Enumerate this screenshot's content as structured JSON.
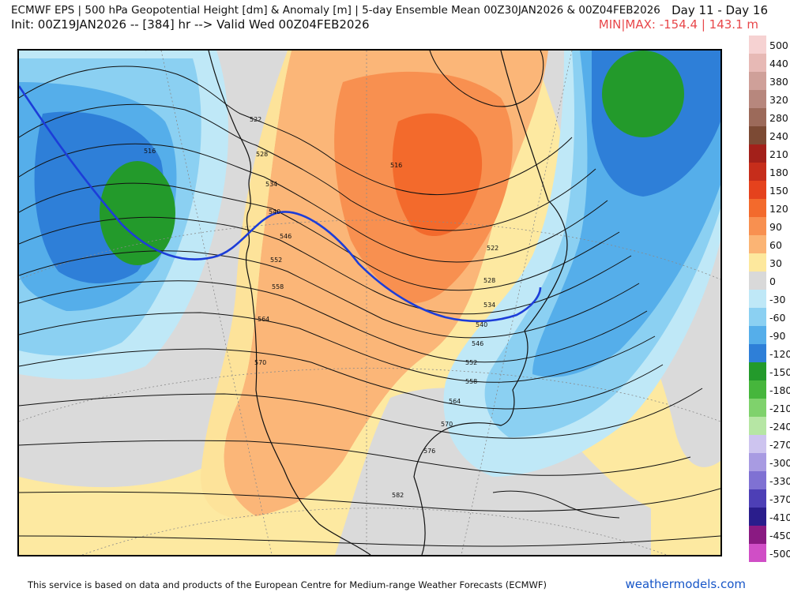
{
  "header": {
    "title": "ECMWF EPS | 500 hPa Geopotential Height [dm] & Anomaly [m] | 5-day Ensemble Mean 00Z30JAN2026 & 00Z04FEB2026",
    "init": "Init: 00Z19JAN2026 -- [384] hr --> Valid Wed 00Z04FEB2026",
    "day_range": "Day 11 - Day 16",
    "minmax": "MIN|MAX: -154.4 | 143.1 m"
  },
  "colorbar": {
    "labels": [
      "500",
      "440",
      "380",
      "320",
      "280",
      "240",
      "210",
      "180",
      "150",
      "120",
      "90",
      "60",
      "30",
      "0",
      "-30",
      "-60",
      "-90",
      "-120",
      "-150",
      "-180",
      "-210",
      "-240",
      "-270",
      "-300",
      "-330",
      "-370",
      "-410",
      "-450",
      "-500"
    ],
    "colors": [
      "#f6d2d2",
      "#e7b9b5",
      "#cfa099",
      "#b7877d",
      "#9c6a5a",
      "#7c4a34",
      "#a3201a",
      "#c62d1b",
      "#e5421d",
      "#f36a2c",
      "#f89050",
      "#fbb474",
      "#fde89d",
      "#d9d9d9",
      "#bfe8f7",
      "#8bd0f2",
      "#55aeea",
      "#2e7fd8",
      "#239a2b",
      "#46b63c",
      "#7fd26c",
      "#b6e6a4",
      "#cdc4ef",
      "#a89be2",
      "#7f71d3",
      "#4d3fb6",
      "#2a1d8c",
      "#8a1a82",
      "#d04ec6",
      "#ee82e6"
    ]
  },
  "map": {
    "contour_labels": [
      "516",
      "522",
      "528",
      "534",
      "540",
      "546",
      "552",
      "558",
      "564",
      "570",
      "516",
      "522",
      "528",
      "534",
      "540",
      "546",
      "552",
      "558",
      "564",
      "570",
      "576",
      "582"
    ]
  },
  "footer": {
    "disclaimer": "This service is based on data and products of the European Centre for Medium-range Weather Forecasts (ECMWF)",
    "brand": "weathermodels.com"
  }
}
